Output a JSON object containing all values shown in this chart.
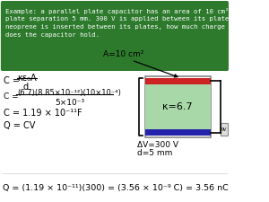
{
  "background": "#ffffff",
  "header_bg": "#2d7a2d",
  "header_text_color": "#ffffff",
  "plate_color_top": "#cc2222",
  "plate_color_bottom": "#2222aa",
  "dielectric_color": "#a8d8a8",
  "text_color": "#000000",
  "header_lines": [
    "Example: a parallel plate capacitor has an area of 10 cm² and",
    "plate separation 5 mm. 300 V is applied between its plates. If",
    "neoprene is inserted between its plates, how much charge",
    "does the capacitor hold."
  ],
  "formula3": "C = 1.19 × 10⁻¹¹F",
  "formula4": "Q = CV",
  "formula5": "Q = (1.19 × 10⁻¹¹)(300) = (3.56 × 10⁻⁹ C) = 3.56 nC",
  "label_A": "A=10 cm²",
  "label_kappa": "κ=6.7",
  "label_dV": "ΔV=300 V",
  "label_d": "d=5 mm"
}
